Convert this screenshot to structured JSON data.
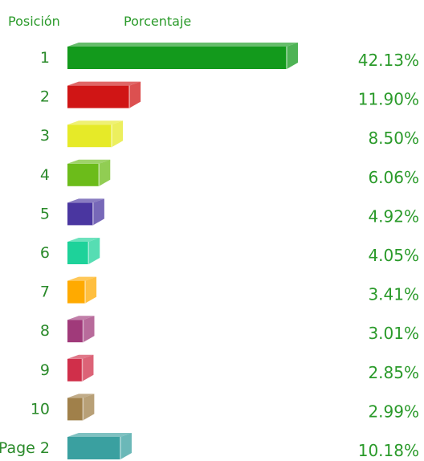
{
  "chart_data": {
    "type": "bar",
    "orientation": "horizontal",
    "headers": {
      "position": "Posición",
      "percentage": "Porcentaje"
    },
    "categories": [
      "1",
      "2",
      "3",
      "4",
      "5",
      "6",
      "7",
      "8",
      "9",
      "10",
      "Page 2"
    ],
    "values": [
      42.13,
      11.9,
      8.5,
      6.06,
      4.92,
      4.05,
      3.41,
      3.01,
      2.85,
      2.99,
      10.18
    ],
    "value_labels": [
      "42.13%",
      "11.90%",
      "8.50%",
      "6.06%",
      "4.92%",
      "4.05%",
      "3.41%",
      "3.01%",
      "2.85%",
      "2.99%",
      "10.18%"
    ],
    "colors": [
      "#139a1c",
      "#d01515",
      "#e6ea28",
      "#6cbc1a",
      "#4a36a0",
      "#1ed29a",
      "#ffaa00",
      "#a03a7a",
      "#d02f4a",
      "#a0804a",
      "#3aa0a0"
    ],
    "xlim": [
      0,
      42.13
    ],
    "grid": false,
    "legend": "none"
  }
}
